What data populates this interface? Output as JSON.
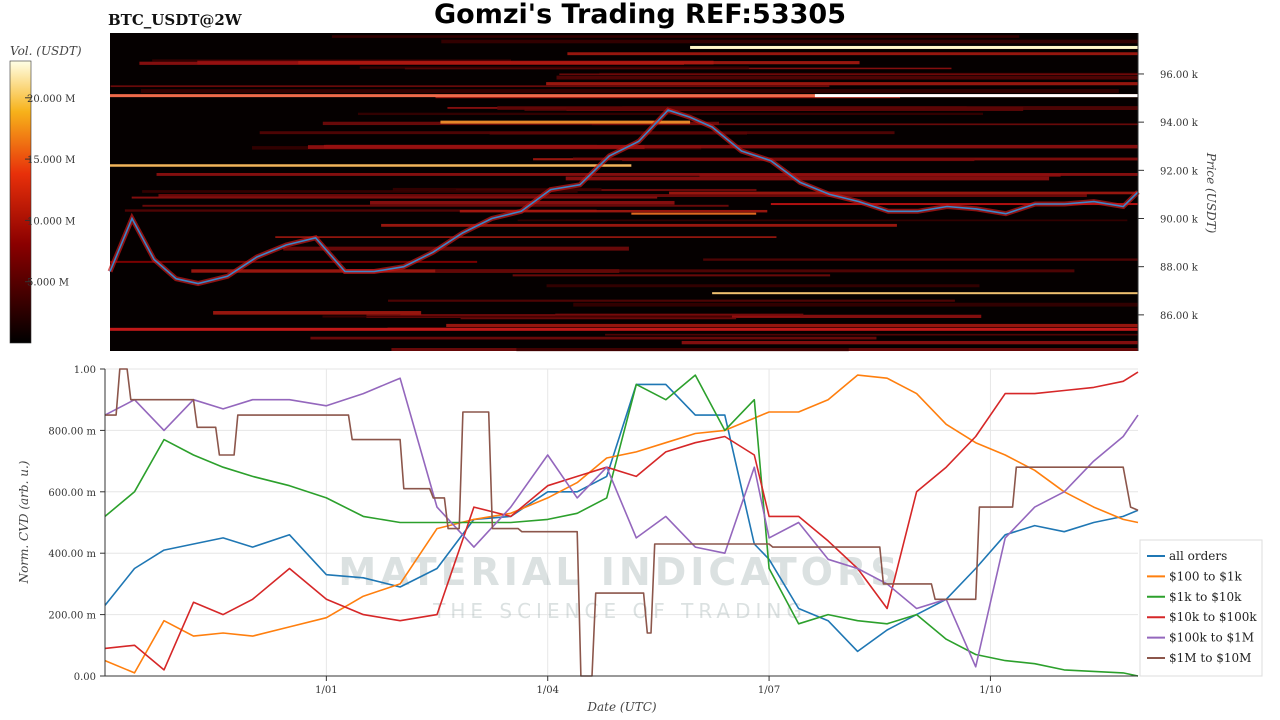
{
  "title": "Gomzi's Trading REF:53305",
  "symbol": "BTC_USDT@2W",
  "watermark": {
    "line1": "MATERIAL INDICATORS",
    "line2": "THE SCIENCE OF TRADING"
  },
  "chart_data": [
    {
      "type": "heatmap",
      "colorbar": {
        "label": "Vol. (USDT)",
        "ticks": [
          "20.000 M",
          "15.000 M",
          "10.000 M",
          "5.000 M"
        ],
        "range": [
          0,
          23000000
        ]
      },
      "ylabel": "Price (USDT)",
      "yticks": [
        "96.00 k",
        "94.00 k",
        "92.00 k",
        "90.00 k",
        "88.00 k",
        "86.00 k"
      ],
      "ylim": [
        84500,
        97700
      ],
      "x_range_days": [
        0,
        14
      ],
      "price_series": {
        "name": "price",
        "color": "#3a86c8",
        "x": [
          0,
          0.3,
          0.6,
          0.9,
          1.2,
          1.6,
          2.0,
          2.4,
          2.8,
          3.2,
          3.6,
          4.0,
          4.4,
          4.8,
          5.2,
          5.6,
          6.0,
          6.4,
          6.8,
          7.2,
          7.6,
          7.9,
          8.2,
          8.6,
          9.0,
          9.4,
          9.8,
          10.2,
          10.6,
          11.0,
          11.4,
          11.8,
          12.2,
          12.6,
          13.0,
          13.4,
          13.8,
          14.0
        ],
        "y": [
          87800,
          90000,
          88300,
          87500,
          87300,
          87600,
          88400,
          88900,
          89200,
          87800,
          87800,
          88000,
          88600,
          89400,
          90000,
          90300,
          91200,
          91400,
          92600,
          93200,
          94500,
          94200,
          93800,
          92800,
          92400,
          91500,
          91000,
          90700,
          90300,
          90300,
          90500,
          90400,
          90200,
          90600,
          90600,
          90700,
          90500,
          91100
        ]
      }
    },
    {
      "type": "line",
      "ylabel": "Norm. CVD (arb. u.)",
      "xlabel": "Date (UTC)",
      "yticks": [
        "1.00",
        "800.00 m",
        "600.00 m",
        "400.00 m",
        "200.00 m",
        "0.00"
      ],
      "ylim": [
        0,
        1
      ],
      "xticks": [
        {
          "label": "1/01",
          "day": 3
        },
        {
          "label": "1/04",
          "day": 6
        },
        {
          "label": "1/07",
          "day": 9
        },
        {
          "label": "1/10",
          "day": 12
        }
      ],
      "x_range_days": [
        0,
        14
      ],
      "series": [
        {
          "name": "all orders",
          "color": "#1f77b4",
          "x": [
            0,
            0.4,
            0.8,
            1.2,
            1.6,
            2.0,
            2.5,
            3.0,
            3.5,
            4.0,
            4.5,
            5.0,
            5.5,
            6.0,
            6.4,
            6.8,
            7.2,
            7.6,
            8.0,
            8.4,
            8.8,
            9.0,
            9.4,
            9.8,
            10.2,
            10.6,
            11.0,
            11.4,
            11.8,
            12.2,
            12.6,
            13.0,
            13.4,
            13.8,
            14.0
          ],
          "y": [
            0.23,
            0.35,
            0.41,
            0.43,
            0.45,
            0.42,
            0.46,
            0.33,
            0.32,
            0.29,
            0.35,
            0.51,
            0.52,
            0.6,
            0.6,
            0.65,
            0.95,
            0.95,
            0.85,
            0.85,
            0.43,
            0.38,
            0.22,
            0.18,
            0.08,
            0.15,
            0.2,
            0.25,
            0.35,
            0.46,
            0.49,
            0.47,
            0.5,
            0.52,
            0.54
          ]
        },
        {
          "name": "$100 to $1k",
          "color": "#ff7f0e",
          "x": [
            0,
            0.4,
            0.8,
            1.2,
            1.6,
            2.0,
            2.5,
            3.0,
            3.5,
            4.0,
            4.5,
            5.0,
            5.5,
            6.0,
            6.4,
            6.8,
            7.2,
            7.6,
            8.0,
            8.4,
            8.8,
            9.0,
            9.4,
            9.8,
            10.2,
            10.6,
            11.0,
            11.4,
            11.8,
            12.2,
            12.6,
            13.0,
            13.4,
            13.8,
            14.0
          ],
          "y": [
            0.05,
            0.01,
            0.18,
            0.13,
            0.14,
            0.13,
            0.16,
            0.19,
            0.26,
            0.3,
            0.48,
            0.51,
            0.53,
            0.58,
            0.63,
            0.71,
            0.73,
            0.76,
            0.79,
            0.8,
            0.84,
            0.86,
            0.86,
            0.9,
            0.98,
            0.97,
            0.92,
            0.82,
            0.76,
            0.72,
            0.67,
            0.6,
            0.55,
            0.51,
            0.5
          ]
        },
        {
          "name": "$1k to $10k",
          "color": "#2ca02c",
          "x": [
            0,
            0.4,
            0.8,
            1.2,
            1.6,
            2.0,
            2.5,
            3.0,
            3.5,
            4.0,
            4.5,
            5.0,
            5.5,
            6.0,
            6.4,
            6.8,
            7.2,
            7.6,
            8.0,
            8.4,
            8.8,
            9.0,
            9.4,
            9.8,
            10.2,
            10.6,
            11.0,
            11.4,
            11.8,
            12.2,
            12.6,
            13.0,
            13.4,
            13.8,
            14.0
          ],
          "y": [
            0.52,
            0.6,
            0.77,
            0.72,
            0.68,
            0.65,
            0.62,
            0.58,
            0.52,
            0.5,
            0.5,
            0.5,
            0.5,
            0.51,
            0.53,
            0.58,
            0.95,
            0.9,
            0.98,
            0.8,
            0.9,
            0.35,
            0.17,
            0.2,
            0.18,
            0.17,
            0.2,
            0.12,
            0.07,
            0.05,
            0.04,
            0.02,
            0.015,
            0.01,
            0.0
          ]
        },
        {
          "name": "$10k to $100k",
          "color": "#d62728",
          "x": [
            0,
            0.4,
            0.8,
            1.2,
            1.6,
            2.0,
            2.5,
            3.0,
            3.5,
            4.0,
            4.5,
            5.0,
            5.5,
            6.0,
            6.4,
            6.8,
            7.2,
            7.6,
            8.0,
            8.4,
            8.8,
            9.0,
            9.4,
            9.8,
            10.2,
            10.6,
            11.0,
            11.4,
            11.8,
            12.2,
            12.6,
            13.0,
            13.4,
            13.8,
            14.0
          ],
          "y": [
            0.09,
            0.1,
            0.02,
            0.24,
            0.2,
            0.25,
            0.35,
            0.25,
            0.2,
            0.18,
            0.2,
            0.55,
            0.52,
            0.62,
            0.65,
            0.68,
            0.65,
            0.73,
            0.76,
            0.78,
            0.72,
            0.52,
            0.52,
            0.44,
            0.35,
            0.22,
            0.6,
            0.68,
            0.78,
            0.92,
            0.92,
            0.93,
            0.94,
            0.96,
            0.99
          ]
        },
        {
          "name": "$100k to $1M",
          "color": "#9467bd",
          "x": [
            0,
            0.4,
            0.8,
            1.2,
            1.6,
            2.0,
            2.5,
            3.0,
            3.5,
            4.0,
            4.5,
            5.0,
            5.5,
            6.0,
            6.4,
            6.8,
            7.2,
            7.6,
            8.0,
            8.4,
            8.8,
            9.0,
            9.4,
            9.8,
            10.2,
            10.6,
            11.0,
            11.4,
            11.8,
            12.2,
            12.6,
            13.0,
            13.4,
            13.8,
            14.0
          ],
          "y": [
            0.85,
            0.9,
            0.8,
            0.9,
            0.87,
            0.9,
            0.9,
            0.88,
            0.92,
            0.97,
            0.55,
            0.42,
            0.55,
            0.72,
            0.58,
            0.68,
            0.45,
            0.52,
            0.42,
            0.4,
            0.68,
            0.45,
            0.5,
            0.38,
            0.35,
            0.3,
            0.22,
            0.25,
            0.03,
            0.45,
            0.55,
            0.6,
            0.7,
            0.78,
            0.85
          ]
        },
        {
          "name": "$1M to $10M",
          "color": "#8c564b",
          "x": [
            0,
            0.15,
            0.2,
            0.3,
            0.35,
            1.2,
            1.25,
            1.5,
            1.55,
            1.75,
            1.8,
            3.3,
            3.35,
            4.0,
            4.05,
            4.4,
            4.45,
            4.6,
            4.65,
            4.8,
            4.85,
            5.2,
            5.25,
            5.6,
            5.65,
            6.4,
            6.45,
            6.6,
            6.65,
            7.3,
            7.35,
            7.4,
            7.45,
            9.0,
            9.05,
            10.5,
            10.55,
            11.2,
            11.25,
            11.8,
            11.85,
            12.3,
            12.35,
            12.6,
            12.65,
            13.0,
            13.05,
            13.8,
            13.9,
            14.0
          ],
          "y": [
            0.85,
            0.85,
            1.0,
            1.0,
            0.9,
            0.9,
            0.81,
            0.81,
            0.72,
            0.72,
            0.85,
            0.85,
            0.77,
            0.77,
            0.61,
            0.61,
            0.58,
            0.58,
            0.48,
            0.48,
            0.86,
            0.86,
            0.48,
            0.48,
            0.47,
            0.47,
            0.0,
            0.0,
            0.27,
            0.27,
            0.14,
            0.14,
            0.43,
            0.43,
            0.42,
            0.42,
            0.3,
            0.3,
            0.25,
            0.25,
            0.55,
            0.55,
            0.68,
            0.68,
            0.68,
            0.68,
            0.68,
            0.68,
            0.55,
            0.54
          ]
        }
      ],
      "legend_position": "lower-right"
    }
  ]
}
